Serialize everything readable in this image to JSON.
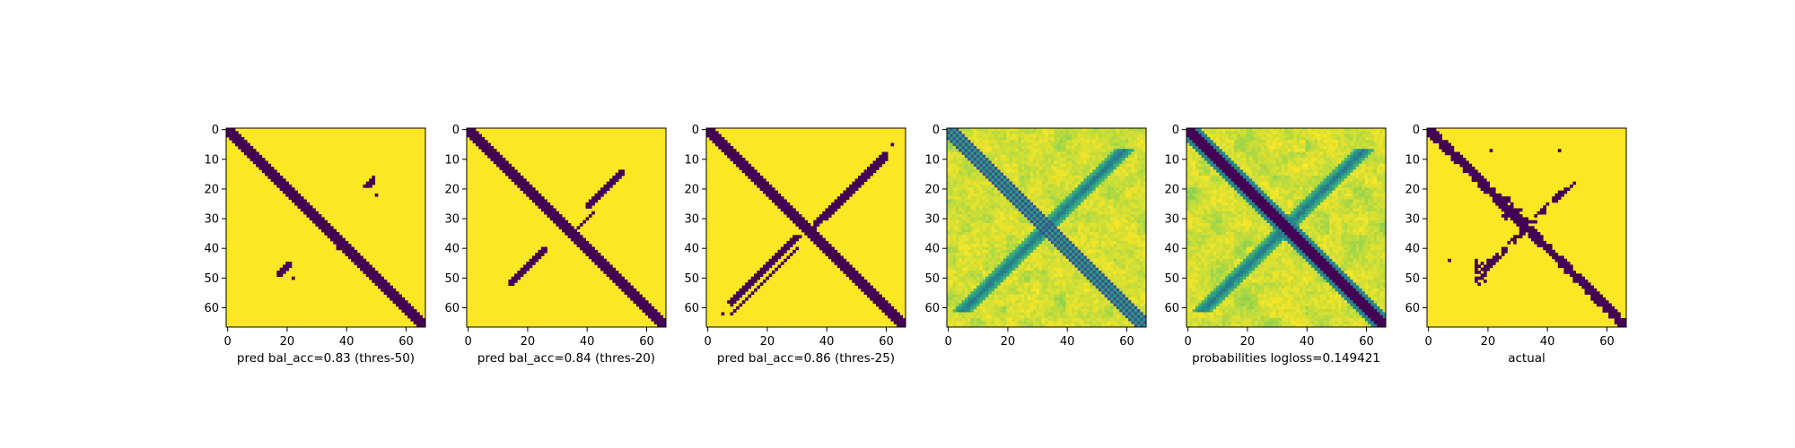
{
  "colors": {
    "yellow": "#fde725",
    "purple": "#440154",
    "viridis": [
      "#440154",
      "#3b528b",
      "#21918c",
      "#5ec962",
      "#fde725"
    ]
  },
  "chart_data": [
    {
      "type": "heatmap",
      "xlabel": "pred bal_acc=0.83 (thres-50)",
      "matrix_size": 67,
      "xticks": [
        0,
        20,
        40,
        60
      ],
      "yticks": [
        0,
        10,
        20,
        30,
        40,
        50,
        60
      ],
      "colormap": "viridis",
      "diagonal_band_width": 3,
      "antidiagonal_fragments": [
        [
          48,
          18
        ],
        [
          47,
          20
        ],
        [
          46,
          21
        ],
        [
          45,
          22
        ]
      ]
    },
    {
      "type": "heatmap",
      "xlabel": "pred bal_acc=0.84 (thres-20)",
      "matrix_size": 67,
      "xticks": [
        0,
        20,
        40,
        60
      ],
      "yticks": [
        0,
        10,
        20,
        30,
        40,
        50,
        60
      ],
      "colormap": "viridis",
      "diagonal_band_width": 3
    },
    {
      "type": "heatmap",
      "xlabel": "pred bal_acc=0.86 (thres-25)",
      "matrix_size": 67,
      "xticks": [
        0,
        20,
        40,
        60
      ],
      "yticks": [
        0,
        10,
        20,
        30,
        40,
        50,
        60
      ],
      "colormap": "viridis",
      "diagonal_band_width": 3
    },
    {
      "type": "heatmap",
      "xlabel": "",
      "matrix_size": 67,
      "xticks": [
        0,
        20,
        40,
        60
      ],
      "yticks": [
        0,
        10,
        20,
        30,
        40,
        50,
        60
      ],
      "colormap": "viridis",
      "continuous": true
    },
    {
      "type": "heatmap",
      "xlabel": "probabilities logloss=0.149421",
      "matrix_size": 67,
      "xticks": [
        0,
        20,
        40,
        60
      ],
      "yticks": [
        0,
        10,
        20,
        30,
        40,
        50,
        60
      ],
      "colormap": "viridis",
      "continuous": true
    },
    {
      "type": "heatmap",
      "xlabel": "actual",
      "matrix_size": 67,
      "xticks": [
        0,
        20,
        40,
        60
      ],
      "yticks": [
        0,
        10,
        20,
        30,
        40,
        50,
        60
      ],
      "colormap": "viridis"
    }
  ]
}
